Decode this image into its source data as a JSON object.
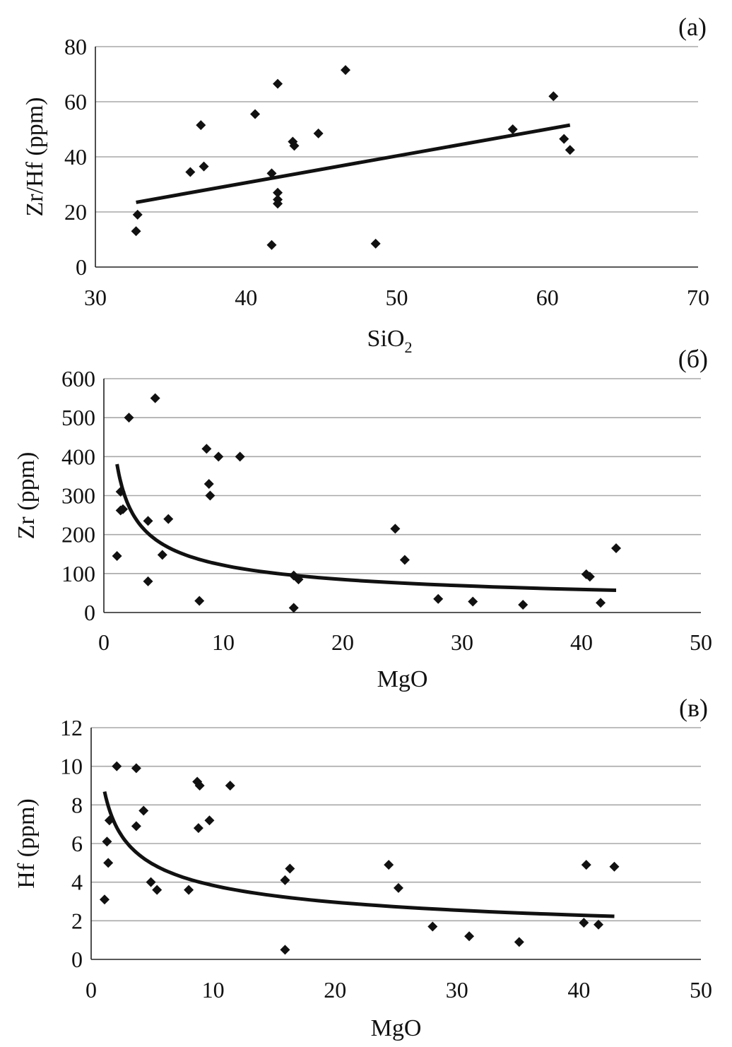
{
  "chart_data": [
    {
      "type": "scatter",
      "panel_label": "(a)",
      "xlabel": "SiO",
      "xlabel_subscript": "2",
      "ylabel": "Zr/Hf (ppm)",
      "xlim": [
        30,
        70
      ],
      "ylim": [
        0,
        80
      ],
      "xticks": [
        "30",
        "40",
        "50",
        "60",
        "70"
      ],
      "yticks": [
        "0",
        "20",
        "40",
        "60",
        "80"
      ],
      "grid": "horizontal",
      "points": [
        [
          32.7,
          13
        ],
        [
          32.8,
          19
        ],
        [
          36.3,
          34.5
        ],
        [
          37.0,
          51.5
        ],
        [
          37.2,
          36.5
        ],
        [
          40.6,
          55.5
        ],
        [
          41.7,
          8
        ],
        [
          41.7,
          34
        ],
        [
          42.1,
          66.5
        ],
        [
          42.1,
          27
        ],
        [
          42.1,
          24.5
        ],
        [
          42.1,
          23
        ],
        [
          43.1,
          45.5
        ],
        [
          43.2,
          44
        ],
        [
          44.8,
          48.5
        ],
        [
          46.6,
          71.5
        ],
        [
          48.6,
          8.5
        ],
        [
          57.7,
          50
        ],
        [
          60.4,
          62
        ],
        [
          61.1,
          46.5
        ],
        [
          61.5,
          42.5
        ]
      ],
      "trendline": {
        "kind": "linear",
        "x": [
          32.7,
          61.5
        ],
        "y": [
          23.5,
          51.5
        ]
      }
    },
    {
      "type": "scatter",
      "panel_label": "(б)",
      "xlabel": "MgO",
      "ylabel": "Zr (ppm)",
      "xlim": [
        0,
        50
      ],
      "ylim": [
        0,
        600
      ],
      "xticks": [
        "0",
        "10",
        "20",
        "30",
        "40",
        "50"
      ],
      "yticks": [
        "0",
        "100",
        "200",
        "300",
        "400",
        "500",
        "600"
      ],
      "grid": "horizontal",
      "points": [
        [
          1.1,
          145
        ],
        [
          1.4,
          310
        ],
        [
          1.4,
          262
        ],
        [
          1.6,
          265
        ],
        [
          2.1,
          500
        ],
        [
          3.7,
          235
        ],
        [
          3.7,
          80
        ],
        [
          4.3,
          550
        ],
        [
          4.9,
          148
        ],
        [
          5.4,
          240
        ],
        [
          8.0,
          30
        ],
        [
          8.6,
          420
        ],
        [
          8.8,
          330
        ],
        [
          8.9,
          300
        ],
        [
          9.6,
          400
        ],
        [
          11.4,
          400
        ],
        [
          15.9,
          95
        ],
        [
          15.9,
          12
        ],
        [
          16.3,
          85
        ],
        [
          24.4,
          215
        ],
        [
          25.2,
          135
        ],
        [
          28.0,
          35
        ],
        [
          30.9,
          28
        ],
        [
          35.1,
          20
        ],
        [
          40.4,
          98
        ],
        [
          40.7,
          92
        ],
        [
          41.6,
          25
        ],
        [
          42.9,
          165
        ]
      ],
      "trendline": {
        "kind": "power",
        "a": 400,
        "b": -0.518,
        "x": [
          1.1,
          42.9
        ]
      }
    },
    {
      "type": "scatter",
      "panel_label": "(в)",
      "xlabel": "MgO",
      "ylabel": "Hf (ppm)",
      "xlim": [
        0,
        50
      ],
      "ylim": [
        0,
        12
      ],
      "xticks": [
        "0",
        "10",
        "20",
        "30",
        "40",
        "50"
      ],
      "yticks": [
        "0",
        "2",
        "4",
        "6",
        "8",
        "10",
        "12"
      ],
      "grid": "horizontal",
      "points": [
        [
          1.1,
          3.1
        ],
        [
          1.3,
          6.1
        ],
        [
          1.4,
          5.0
        ],
        [
          1.5,
          7.2
        ],
        [
          2.1,
          10.0
        ],
        [
          3.7,
          9.9
        ],
        [
          3.7,
          6.9
        ],
        [
          4.3,
          7.7
        ],
        [
          4.9,
          4.0
        ],
        [
          5.4,
          3.6
        ],
        [
          8.0,
          3.6
        ],
        [
          8.7,
          9.2
        ],
        [
          8.8,
          6.8
        ],
        [
          8.9,
          9.0
        ],
        [
          9.7,
          7.2
        ],
        [
          11.4,
          9.0
        ],
        [
          15.9,
          4.1
        ],
        [
          15.9,
          0.5
        ],
        [
          16.3,
          4.7
        ],
        [
          24.4,
          4.9
        ],
        [
          25.2,
          3.7
        ],
        [
          28.0,
          1.7
        ],
        [
          31.0,
          1.2
        ],
        [
          35.1,
          0.9
        ],
        [
          40.4,
          1.9
        ],
        [
          40.6,
          4.9
        ],
        [
          41.6,
          1.8
        ],
        [
          42.9,
          4.8
        ]
      ],
      "trendline": {
        "kind": "power",
        "a": 9.0,
        "b": -0.371,
        "x": [
          1.1,
          42.9
        ]
      }
    }
  ]
}
